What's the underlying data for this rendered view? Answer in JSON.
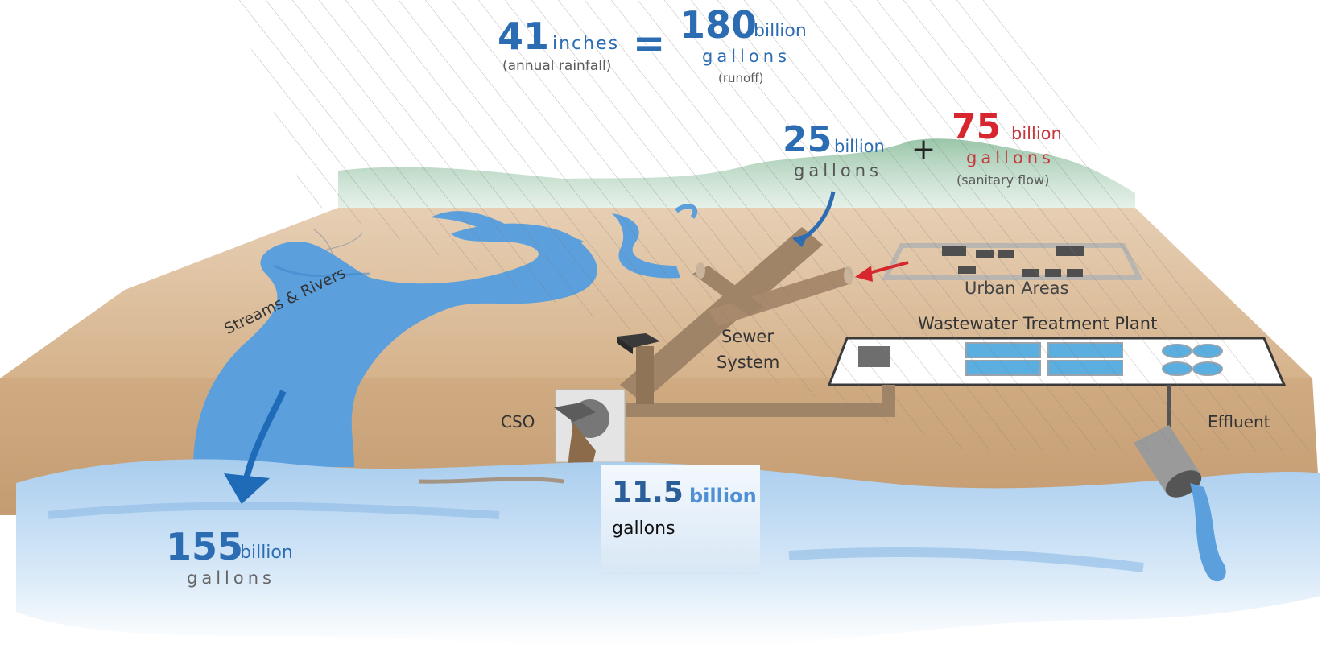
{
  "colors": {
    "water": "#5b9fdc",
    "water_dark": "#2e74b8",
    "land": "#d9b894",
    "land_side": "#c9a47c",
    "hills": "#9fc7ac",
    "pipe": "#a08468",
    "arrow_blue": "#2b6cb2",
    "arrow_red": "#d8262e",
    "text_blue": "#2b6cb2",
    "text_red": "#d8262e"
  },
  "rainfall": {
    "value": "41",
    "unit": "inches",
    "note": "(annual rainfall)",
    "equals": "="
  },
  "runoff": {
    "value": "180",
    "unit": "billion",
    "unit2": "gallons",
    "note": "(runoff)"
  },
  "stormwater": {
    "value": "25",
    "unit": "billion",
    "unit2": "gallons"
  },
  "plus": "+",
  "sanitary": {
    "value": "75",
    "unit": "billion",
    "unit2": "gallons",
    "note": "(sanitary flow)"
  },
  "labels": {
    "urban_areas": "Urban Areas",
    "wwtp": "Wastewater Treatment Plant",
    "sewer_line1": "Sewer",
    "sewer_line2": "System",
    "streams": "Streams & Rivers",
    "cso": "CSO",
    "effluent": "Effluent"
  },
  "river_outflow": {
    "value": "155",
    "unit": "billion",
    "unit2": "gallons"
  },
  "cso_overflow": {
    "value": "11.5",
    "unit": "billion",
    "unit2": "gallons"
  }
}
